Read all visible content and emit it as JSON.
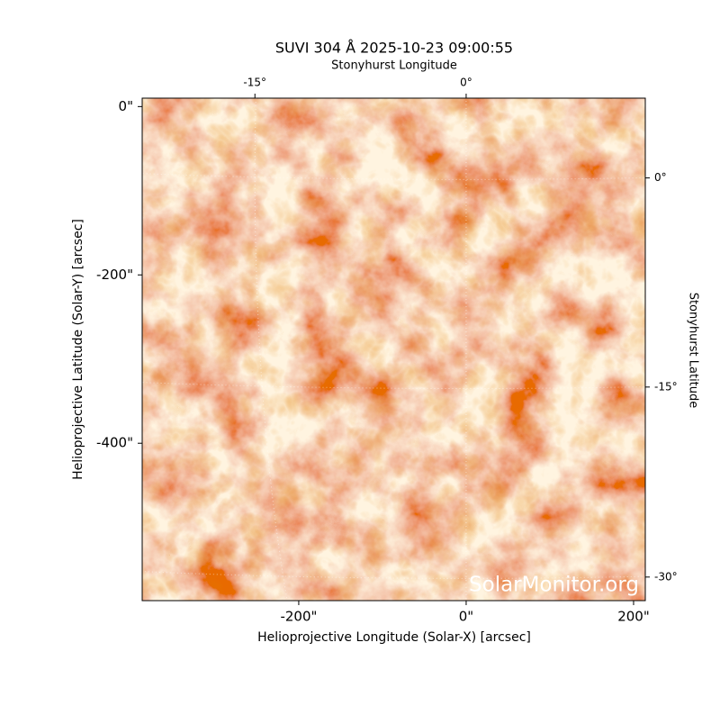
{
  "chart_data": {
    "type": "image",
    "title": "SUVI 304 Å 2025-10-23 09:00:55",
    "x_label": "Helioprojective Longitude (Solar-X) [arcsec]",
    "y_label": "Helioprojective Latitude (Solar-Y) [arcsec]",
    "x2_label": "Stonyhurst Longitude",
    "y2_label": "Stonyhurst Latitude",
    "xlim": [
      -387,
      214
    ],
    "ylim": [
      -587,
      10
    ],
    "xticks": [
      {
        "value": -200,
        "label": "-200\""
      },
      {
        "value": 0,
        "label": "0\""
      },
      {
        "value": 200,
        "label": "200\""
      }
    ],
    "yticks": [
      {
        "value": 0,
        "label": "0\""
      },
      {
        "value": -200,
        "label": "-200\""
      },
      {
        "value": -400,
        "label": "-400\""
      }
    ],
    "x2ticks": [
      {
        "value": -15,
        "label": "-15°"
      },
      {
        "value": 0,
        "label": "0°"
      }
    ],
    "y2ticks": [
      {
        "value": 0,
        "label": "0°"
      },
      {
        "value": -15,
        "label": "-15°"
      },
      {
        "value": -30,
        "label": "-30°"
      }
    ],
    "watermark": "SolarMonitor.org"
  }
}
